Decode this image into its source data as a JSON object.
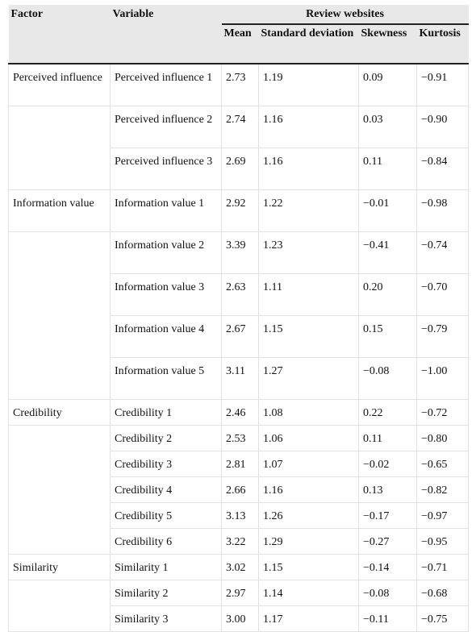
{
  "headers": {
    "factor": "Factor",
    "variable": "Variable",
    "group": "Review websites",
    "mean": "Mean",
    "sd": "Standard deviation",
    "skewness": "Skewness",
    "kurtosis": "Kurtosis"
  },
  "rows": [
    {
      "factor": "Perceived influence",
      "variable": "Perceived influence 1",
      "mean": "2.73",
      "sd": "1.19",
      "skewness": "0.09",
      "kurtosis": "−0.91"
    },
    {
      "factor": "",
      "variable": "Perceived influence 2",
      "mean": "2.74",
      "sd": "1.16",
      "skewness": "0.03",
      "kurtosis": "−0.90"
    },
    {
      "factor": "",
      "variable": "Perceived influence 3",
      "mean": "2.69",
      "sd": "1.16",
      "skewness": "0.11",
      "kurtosis": "−0.84"
    },
    {
      "factor": "Information value",
      "variable": "Information value 1",
      "mean": "2.92",
      "sd": "1.22",
      "skewness": "−0.01",
      "kurtosis": "−0.98"
    },
    {
      "factor": "",
      "variable": "Information value 2",
      "mean": "3.39",
      "sd": "1.23",
      "skewness": "−0.41",
      "kurtosis": "−0.74"
    },
    {
      "factor": "",
      "variable": "Information value 3",
      "mean": "2.63",
      "sd": "1.11",
      "skewness": "0.20",
      "kurtosis": "−0.70"
    },
    {
      "factor": "",
      "variable": "Information value 4",
      "mean": "2.67",
      "sd": "1.15",
      "skewness": "0.15",
      "kurtosis": "−0.79"
    },
    {
      "factor": "",
      "variable": "Information value 5",
      "mean": "3.11",
      "sd": "1.27",
      "skewness": "−0.08",
      "kurtosis": "−1.00"
    },
    {
      "factor": "Credibility",
      "variable": "Credibility 1",
      "mean": "2.46",
      "sd": "1.08",
      "skewness": "0.22",
      "kurtosis": "−0.72"
    },
    {
      "factor": "",
      "variable": "Credibility 2",
      "mean": "2.53",
      "sd": "1.06",
      "skewness": "0.11",
      "kurtosis": "−0.80"
    },
    {
      "factor": "",
      "variable": "Credibility 3",
      "mean": "2.81",
      "sd": "1.07",
      "skewness": "−0.02",
      "kurtosis": "−0.65"
    },
    {
      "factor": "",
      "variable": "Credibility 4",
      "mean": "2.66",
      "sd": "1.16",
      "skewness": "0.13",
      "kurtosis": "−0.82"
    },
    {
      "factor": "",
      "variable": "Credibility 5",
      "mean": "3.13",
      "sd": "1.26",
      "skewness": "−0.17",
      "kurtosis": "−0.97"
    },
    {
      "factor": "",
      "variable": "Credibility 6",
      "mean": "3.22",
      "sd": "1.29",
      "skewness": "−0.27",
      "kurtosis": "−0.95"
    },
    {
      "factor": "Similarity",
      "variable": "Similarity 1",
      "mean": "3.02",
      "sd": "1.15",
      "skewness": "−0.14",
      "kurtosis": "−0.71"
    },
    {
      "factor": "",
      "variable": "Similarity 2",
      "mean": "2.97",
      "sd": "1.14",
      "skewness": "−0.08",
      "kurtosis": "−0.68"
    },
    {
      "factor": "",
      "variable": "Similarity 3",
      "mean": "3.00",
      "sd": "1.17",
      "skewness": "−0.11",
      "kurtosis": "−0.75"
    }
  ]
}
